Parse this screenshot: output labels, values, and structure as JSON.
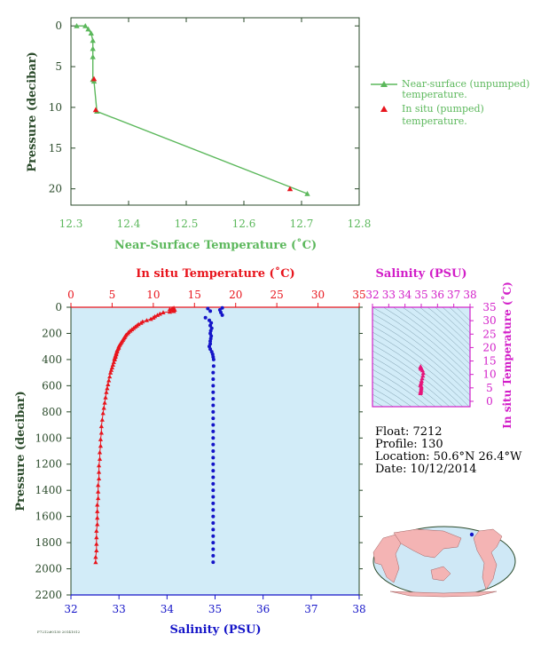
{
  "colors": {
    "green": "#5cb85c",
    "red": "#e8141c",
    "blue": "#1414c8",
    "magenta": "#d21ec8",
    "pink": "#e6147a",
    "dark": "#2a4a2a",
    "panel_bg": "#d2ecf8",
    "land": "#f4b4b4",
    "ocean": "#cfe8f6"
  },
  "info": {
    "float": "Float:  7212",
    "profile": "Profile:  130",
    "location": "Location:  50.6°N  26.4°W",
    "date": "Date:  10/12/2014"
  },
  "chart_data": [
    {
      "type": "line",
      "xlabel": "Near-Surface Temperature (˚C)",
      "ylabel": "Pressure (decibar)",
      "xlim": [
        12.3,
        12.8
      ],
      "ylim": [
        22,
        -1
      ],
      "xticks": [
        "12.3",
        "12.4",
        "12.5",
        "12.6",
        "12.7",
        "12.8"
      ],
      "yticks": [
        "0",
        "5",
        "10",
        "15",
        "20"
      ],
      "legend_position": "right",
      "series": [
        {
          "name": "Near-surface (unpumped) temperature.",
          "marker": "triangle",
          "x": [
            12.31,
            12.325,
            12.33,
            12.335,
            12.338,
            12.338,
            12.338,
            12.338,
            12.34,
            12.345,
            12.71
          ],
          "y": [
            0.0,
            0.0,
            0.4,
            0.9,
            1.8,
            2.8,
            3.8,
            6.6,
            6.8,
            10.5,
            20.6
          ]
        },
        {
          "name": "In situ (pumped) temperature.",
          "marker": "triangle",
          "x": [
            12.34,
            12.343,
            12.68
          ],
          "y": [
            6.5,
            10.3,
            20.0
          ]
        }
      ]
    },
    {
      "type": "scatter",
      "ylabel": "Pressure (decibar)",
      "xlabel_top": "In situ Temperature (˚C)",
      "xlabel_bottom": "Salinity (PSU)",
      "ylim": [
        2200,
        0
      ],
      "xlim_top": [
        0,
        35
      ],
      "xlim_bottom": [
        32,
        38
      ],
      "xticks_top": [
        "0",
        "5",
        "10",
        "15",
        "20",
        "25",
        "30",
        "35"
      ],
      "xticks_bottom": [
        "32",
        "33",
        "34",
        "35",
        "36",
        "37",
        "38"
      ],
      "yticks": [
        "0",
        "200",
        "400",
        "600",
        "800",
        "1000",
        "1200",
        "1400",
        "1600",
        "1800",
        "2000",
        "2200"
      ],
      "temperature": {
        "p": [
          5,
          10,
          15,
          20,
          25,
          30,
          35,
          40,
          50,
          60,
          70,
          80,
          90,
          100,
          110,
          120,
          130,
          140,
          150,
          160,
          170,
          180,
          190,
          200,
          210,
          220,
          230,
          240,
          250,
          260,
          270,
          280,
          290,
          300,
          310,
          320,
          330,
          340,
          350,
          360,
          370,
          380,
          390,
          400,
          420,
          440,
          460,
          480,
          500,
          530,
          560,
          590,
          620,
          650,
          690,
          730,
          770,
          810,
          860,
          910,
          960,
          1010,
          1060,
          1110,
          1160,
          1210,
          1260,
          1310,
          1360,
          1410,
          1460,
          1510,
          1560,
          1610,
          1660,
          1710,
          1760,
          1810,
          1860,
          1910,
          1950
        ],
        "t": [
          12.5,
          12.3,
          12.0,
          12.6,
          12.2,
          12.5,
          12.0,
          11.2,
          10.8,
          10.5,
          10.2,
          10.0,
          9.7,
          9.2,
          8.7,
          8.5,
          8.2,
          8.0,
          7.8,
          7.6,
          7.4,
          7.2,
          7.0,
          6.9,
          6.7,
          6.6,
          6.5,
          6.4,
          6.3,
          6.2,
          6.1,
          6.0,
          5.9,
          5.8,
          5.8,
          5.7,
          5.6,
          5.6,
          5.5,
          5.5,
          5.4,
          5.4,
          5.3,
          5.3,
          5.2,
          5.1,
          5.0,
          4.9,
          4.8,
          4.7,
          4.6,
          4.5,
          4.4,
          4.3,
          4.2,
          4.1,
          4.0,
          3.9,
          3.8,
          3.7,
          3.7,
          3.6,
          3.6,
          3.5,
          3.5,
          3.4,
          3.4,
          3.4,
          3.3,
          3.3,
          3.3,
          3.2,
          3.2,
          3.2,
          3.2,
          3.1,
          3.1,
          3.1,
          3.1,
          3.0,
          3.0
        ]
      },
      "salinity": {
        "p": [
          5,
          10,
          20,
          30,
          40,
          60,
          80,
          100,
          120,
          140,
          160,
          180,
          200,
          220,
          240,
          260,
          280,
          300,
          320,
          340,
          360,
          380,
          400,
          450,
          500,
          550,
          600,
          650,
          700,
          750,
          800,
          850,
          900,
          950,
          1000,
          1050,
          1100,
          1150,
          1200,
          1250,
          1300,
          1350,
          1400,
          1450,
          1500,
          1550,
          1600,
          1650,
          1700,
          1750,
          1800,
          1850,
          1900,
          1950
        ],
        "s": [
          35.15,
          34.85,
          35.1,
          34.9,
          35.12,
          35.15,
          34.8,
          34.88,
          34.92,
          34.9,
          34.93,
          34.91,
          34.9,
          34.92,
          34.91,
          34.9,
          34.9,
          34.88,
          34.9,
          34.93,
          34.95,
          34.96,
          34.97,
          34.97,
          34.96,
          34.96,
          34.96,
          34.96,
          34.96,
          34.96,
          34.96,
          34.96,
          34.96,
          34.96,
          34.96,
          34.96,
          34.96,
          34.96,
          34.96,
          34.96,
          34.96,
          34.96,
          34.96,
          34.96,
          34.96,
          34.96,
          34.96,
          34.96,
          34.96,
          34.96,
          34.96,
          34.96,
          34.96,
          34.96
        ]
      }
    },
    {
      "type": "scatter",
      "xlabel": "Salinity (PSU)",
      "ylabel": "In situ Temperature (˚C)",
      "xlim": [
        32,
        38
      ],
      "ylim": [
        -2,
        35
      ],
      "xticks": [
        "32",
        "33",
        "34",
        "35",
        "36",
        "37",
        "38"
      ],
      "yticks": [
        "0",
        "5",
        "10",
        "15",
        "20",
        "25",
        "30",
        "35"
      ],
      "points": {
        "s": [
          34.95,
          34.96,
          34.97,
          34.98,
          34.99,
          35.0,
          35.01,
          34.95,
          34.97,
          35.0,
          35.02,
          35.05,
          35.1,
          35.12,
          35.08,
          35.0,
          34.97,
          34.96,
          34.96,
          34.96
        ],
        "t": [
          3.0,
          3.3,
          3.6,
          4.0,
          4.5,
          5.0,
          5.5,
          6.0,
          6.5,
          7.0,
          7.6,
          8.5,
          9.5,
          10.5,
          11.5,
          12.0,
          12.3,
          12.5,
          12.8,
          13.0
        ]
      }
    }
  ]
}
